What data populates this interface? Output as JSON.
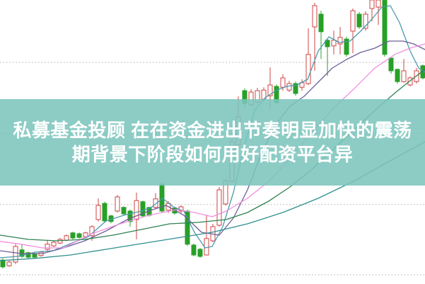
{
  "overlay": {
    "line1": "私募基金投顾 在在资金进出节奏明显加快的震荡",
    "line2": "期背景下阶段如何用好配资平台异",
    "band_color": "rgba(123,196,188,0.87)",
    "text_color": "#ffffff"
  },
  "chart_data": {
    "type": "candlestick",
    "title": "",
    "background": "#ffffff",
    "up_color": "#cf4444",
    "up_fill": "#ffffff",
    "down_color": "#28a028",
    "grid": {
      "color": "#adadad",
      "levels": [
        78,
        52.8,
        27.8,
        3
      ]
    },
    "x_start": 4,
    "x_step": 9,
    "body_width": 6,
    "ylim": [
      0,
      100
    ],
    "candles": [
      [
        8.2,
        5.8,
        5.2,
        8.8
      ],
      [
        6.2,
        7.5,
        5.8,
        8.0
      ],
      [
        7.5,
        13.0,
        6.8,
        13.8
      ],
      [
        11.8,
        9.5,
        9.0,
        13.8
      ],
      [
        10.8,
        9.2,
        8.8,
        11.2
      ],
      [
        10.5,
        9.2,
        8.9,
        10.9
      ],
      [
        9.8,
        11.0,
        9.4,
        11.5
      ],
      [
        12.0,
        13.8,
        11.5,
        15.0
      ],
      [
        13.2,
        14.5,
        12.8,
        15.2
      ],
      [
        14.2,
        15.5,
        13.8,
        16.0
      ],
      [
        15.2,
        16.8,
        14.8,
        17.2
      ],
      [
        17.8,
        16.0,
        15.5,
        18.2
      ],
      [
        17.5,
        16.2,
        15.8,
        17.9
      ],
      [
        16.5,
        17.8,
        16.0,
        18.2
      ],
      [
        16.8,
        20.0,
        15.0,
        20.5
      ],
      [
        22.5,
        27.5,
        21.8,
        30.0
      ],
      [
        28.2,
        22.0,
        21.5,
        28.8
      ],
      [
        23.8,
        21.8,
        21.2,
        24.2
      ],
      [
        25.5,
        30.5,
        25.0,
        31.2
      ],
      [
        26.8,
        24.5,
        24.0,
        27.2
      ],
      [
        25.5,
        21.8,
        20.0,
        26.0
      ],
      [
        22.5,
        29.2,
        15.5,
        32.0
      ],
      [
        28.8,
        23.8,
        23.2,
        29.2
      ],
      [
        26.8,
        24.0,
        23.5,
        27.0
      ],
      [
        26.8,
        29.8,
        26.2,
        31.8
      ],
      [
        35.0,
        25.5,
        25.0,
        35.5
      ],
      [
        25.8,
        28.2,
        24.8,
        29.0
      ],
      [
        26.5,
        24.8,
        24.2,
        27.0
      ],
      [
        25.5,
        27.0,
        24.8,
        27.5
      ],
      [
        25.5,
        13.8,
        13.2,
        26.0
      ],
      [
        13.5,
        10.0,
        9.5,
        14.0
      ],
      [
        12.0,
        9.5,
        9.0,
        12.5
      ],
      [
        10.0,
        15.8,
        9.8,
        24.2
      ],
      [
        15.0,
        20.0,
        14.5,
        21.0
      ],
      [
        20.5,
        33.0,
        20.0,
        34.0
      ],
      [
        28.0,
        36.2,
        27.5,
        37.0
      ],
      [
        36.0,
        50.0,
        35.5,
        51.0
      ],
      [
        48.8,
        58.8,
        48.0,
        66.0
      ],
      [
        68.0,
        63.5,
        62.0,
        68.8
      ],
      [
        63.0,
        67.5,
        62.5,
        68.5
      ],
      [
        64.0,
        68.0,
        63.5,
        69.0
      ],
      [
        65.0,
        68.2,
        64.5,
        69.2
      ],
      [
        66.2,
        70.0,
        61.8,
        76.2
      ],
      [
        69.5,
        63.8,
        63.0,
        70.2
      ],
      [
        69.2,
        72.5,
        68.0,
        73.8
      ],
      [
        68.2,
        70.5,
        67.5,
        71.5
      ],
      [
        70.5,
        67.0,
        66.2,
        71.2
      ],
      [
        69.2,
        70.8,
        68.0,
        72.0
      ],
      [
        70.5,
        80.8,
        70.0,
        90.0
      ],
      [
        90.5,
        98.0,
        75.0,
        99.0
      ],
      [
        95.0,
        88.8,
        79.2,
        96.2
      ],
      [
        85.8,
        83.5,
        73.2,
        86.5
      ],
      [
        83.8,
        85.8,
        80.8,
        89.2
      ],
      [
        84.5,
        86.8,
        80.8,
        90.5
      ],
      [
        86.2,
        80.8,
        80.0,
        87.0
      ],
      [
        89.0,
        96.2,
        81.2,
        97.0
      ],
      [
        95.0,
        90.5,
        89.8,
        95.8
      ],
      [
        90.0,
        95.0,
        89.2,
        96.0
      ],
      [
        97.0,
        100.0,
        92.5,
        100.0
      ],
      [
        97.5,
        100.0,
        91.2,
        100.0
      ],
      [
        100.0,
        80.8,
        80.0,
        100.0
      ],
      [
        79.5,
        75.0,
        74.0,
        80.0
      ],
      [
        75.5,
        71.2,
        70.5,
        75.8
      ],
      [
        71.2,
        75.0,
        70.8,
        79.2
      ],
      [
        70.0,
        72.5,
        69.5,
        73.0
      ],
      [
        71.2,
        75.0,
        70.5,
        76.0
      ],
      [
        76.8,
        72.5,
        72.0,
        77.2
      ]
    ],
    "ma_lines": [
      {
        "name": "MA5",
        "color": "#4a9aae",
        "points": [
          [
            0,
            9
          ],
          [
            25,
            9.5
          ],
          [
            50,
            11
          ],
          [
            75,
            11.5
          ],
          [
            100,
            14
          ],
          [
            125,
            16.5
          ],
          [
            150,
            22
          ],
          [
            175,
            24
          ],
          [
            200,
            25.5
          ],
          [
            215,
            27
          ],
          [
            230,
            30
          ],
          [
            245,
            27
          ],
          [
            260,
            25.5
          ],
          [
            275,
            18
          ],
          [
            290,
            12.5
          ],
          [
            300,
            13
          ],
          [
            315,
            20
          ],
          [
            330,
            32
          ],
          [
            345,
            48
          ],
          [
            360,
            61
          ],
          [
            375,
            65.5
          ],
          [
            390,
            68
          ],
          [
            405,
            69.5
          ],
          [
            420,
            70
          ],
          [
            435,
            72
          ],
          [
            450,
            82
          ],
          [
            465,
            87
          ],
          [
            480,
            85
          ],
          [
            495,
            85.5
          ],
          [
            510,
            89
          ],
          [
            525,
            93
          ],
          [
            540,
            97.5
          ],
          [
            552,
            98
          ],
          [
            565,
            92
          ],
          [
            580,
            82
          ],
          [
            592,
            76
          ],
          [
            601,
            74.5
          ]
        ]
      },
      {
        "name": "MA10",
        "color": "#6f5f9a",
        "points": [
          [
            0,
            11.5
          ],
          [
            30,
            10.5
          ],
          [
            60,
            10.5
          ],
          [
            90,
            12.5
          ],
          [
            120,
            15
          ],
          [
            150,
            18.5
          ],
          [
            180,
            22.5
          ],
          [
            210,
            25.5
          ],
          [
            235,
            27.5
          ],
          [
            260,
            24
          ],
          [
            285,
            18
          ],
          [
            310,
            17
          ],
          [
            330,
            23
          ],
          [
            350,
            33
          ],
          [
            370,
            46
          ],
          [
            390,
            56
          ],
          [
            410,
            62.5
          ],
          [
            430,
            66
          ],
          [
            450,
            71
          ],
          [
            470,
            76
          ],
          [
            490,
            79
          ],
          [
            510,
            81.5
          ],
          [
            530,
            83
          ],
          [
            550,
            85.5
          ],
          [
            570,
            85.5
          ],
          [
            585,
            84.5
          ],
          [
            601,
            82.5
          ]
        ]
      },
      {
        "name": "MA20",
        "color": "#ef8fe0",
        "points": [
          [
            0,
            14.8
          ],
          [
            30,
            13.8
          ],
          [
            60,
            12.5
          ],
          [
            90,
            12.5
          ],
          [
            130,
            17.5
          ],
          [
            170,
            21
          ],
          [
            210,
            24
          ],
          [
            250,
            26
          ],
          [
            275,
            25
          ],
          [
            300,
            23.5
          ],
          [
            320,
            25.5
          ],
          [
            350,
            30
          ],
          [
            380,
            36
          ],
          [
            410,
            44
          ],
          [
            440,
            53
          ],
          [
            470,
            61.5
          ],
          [
            500,
            68.5
          ],
          [
            530,
            76
          ],
          [
            560,
            81
          ],
          [
            580,
            83
          ],
          [
            601,
            84.5
          ]
        ]
      },
      {
        "name": "MA30",
        "color": "#2f8251",
        "points": [
          [
            0,
            17
          ],
          [
            40,
            15.5
          ],
          [
            80,
            15
          ],
          [
            120,
            15.5
          ],
          [
            160,
            17
          ],
          [
            200,
            19
          ],
          [
            240,
            21
          ],
          [
            280,
            21.5
          ],
          [
            320,
            22.5
          ],
          [
            350,
            25
          ],
          [
            380,
            29
          ],
          [
            410,
            34
          ],
          [
            440,
            40
          ],
          [
            470,
            47
          ],
          [
            500,
            54
          ],
          [
            530,
            61
          ],
          [
            560,
            67.5
          ],
          [
            580,
            71.5
          ],
          [
            601,
            75.5
          ]
        ]
      },
      {
        "name": "MA60",
        "color": "#2f8f8f",
        "points": [
          [
            0,
            8
          ],
          [
            50,
            8.8
          ],
          [
            100,
            10
          ],
          [
            150,
            12
          ],
          [
            200,
            14
          ],
          [
            250,
            16
          ],
          [
            300,
            18
          ],
          [
            350,
            21
          ],
          [
            400,
            25
          ],
          [
            450,
            30
          ],
          [
            500,
            36
          ],
          [
            550,
            43
          ],
          [
            601,
            50
          ]
        ]
      }
    ]
  }
}
